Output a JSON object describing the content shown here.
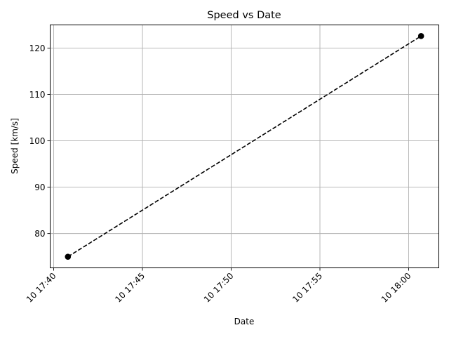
{
  "chart_data": {
    "type": "line",
    "title": "Speed vs Date",
    "xlabel": "Date",
    "ylabel": "Speed [km/s]",
    "x": [
      "10 17:40:48",
      "10 18:00:42"
    ],
    "y": [
      75.0,
      122.6
    ],
    "xlim": [
      "10 17:39:48",
      "10 18:01:42"
    ],
    "ylim": [
      72.6,
      125.0
    ],
    "x_ticks": [
      "10 17:40",
      "10 17:45",
      "10 17:50",
      "10 17:55",
      "10 18:00"
    ],
    "y_ticks": [
      80,
      90,
      100,
      110,
      120
    ],
    "grid": true,
    "line_style": "dashed",
    "marker": "circle",
    "color": "#000000"
  }
}
